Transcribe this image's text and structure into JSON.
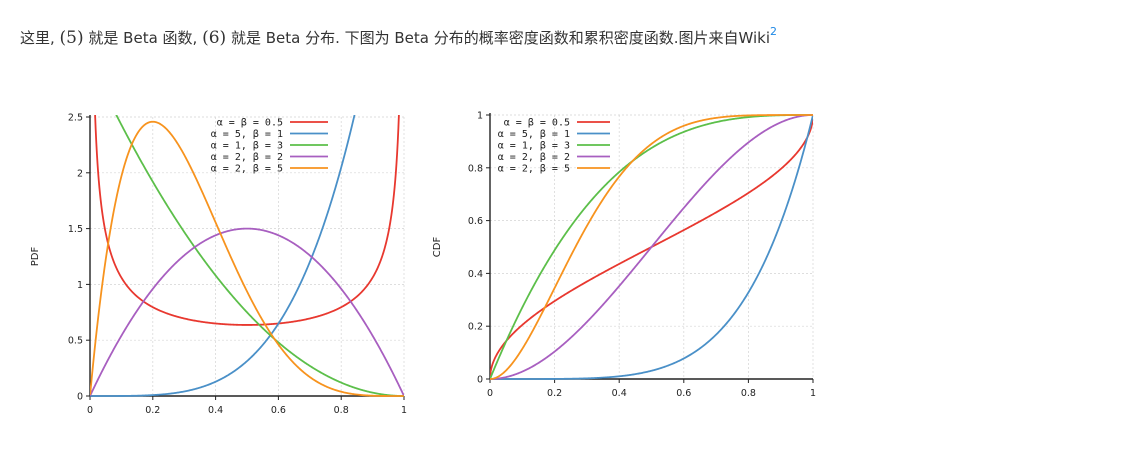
{
  "intro": {
    "p1": "这里, ",
    "eq1": "(5)",
    "p2": " 就是 Beta 函数, ",
    "eq2": "(6)",
    "p3": " 就是 Beta 分布. 下图为 Beta 分布的概率密度函数和累积密度函数.图片来自Wiki",
    "footnote": "2"
  },
  "colors": {
    "red": "#e8382f",
    "blue": "#4a90c8",
    "green": "#5cbf4a",
    "purple": "#a85fc0",
    "orange": "#f7931e"
  },
  "chart_data": [
    {
      "type": "line",
      "title": "",
      "xlabel": "",
      "ylabel": "PDF",
      "xlim": [
        0,
        1
      ],
      "ylim": [
        0,
        2.5
      ],
      "xticks": [
        "0",
        "0.2",
        "0.4",
        "0.6",
        "0.8",
        "1"
      ],
      "yticks": [
        "0",
        "0.5",
        "1",
        "1.5",
        "2",
        "2.5"
      ],
      "grid": true,
      "legend_position": "top-right",
      "series": [
        {
          "name": "α = β = 0.5",
          "alpha": 0.5,
          "beta": 0.5,
          "color": "#e8382f"
        },
        {
          "name": "α = 5, β = 1",
          "alpha": 5,
          "beta": 1,
          "color": "#4a90c8"
        },
        {
          "name": "α = 1, β = 3",
          "alpha": 1,
          "beta": 3,
          "color": "#5cbf4a"
        },
        {
          "name": "α = 2, β = 2",
          "alpha": 2,
          "beta": 2,
          "color": "#a85fc0"
        },
        {
          "name": "α = 2, β = 5",
          "alpha": 2,
          "beta": 5,
          "color": "#f7931e"
        }
      ]
    },
    {
      "type": "line",
      "title": "",
      "xlabel": "",
      "ylabel": "CDF",
      "xlim": [
        0,
        1
      ],
      "ylim": [
        0,
        1
      ],
      "xticks": [
        "0",
        "0.2",
        "0.4",
        "0.6",
        "0.8",
        "1"
      ],
      "yticks": [
        "0",
        "0.2",
        "0.4",
        "0.6",
        "0.8",
        "1"
      ],
      "grid": true,
      "legend_position": "top-left",
      "series": [
        {
          "name": "α = β = 0.5",
          "alpha": 0.5,
          "beta": 0.5,
          "color": "#e8382f"
        },
        {
          "name": "α = 5, β = 1",
          "alpha": 5,
          "beta": 1,
          "color": "#4a90c8"
        },
        {
          "name": "α = 1, β = 3",
          "alpha": 1,
          "beta": 3,
          "color": "#5cbf4a"
        },
        {
          "name": "α = 2, β = 2",
          "alpha": 2,
          "beta": 2,
          "color": "#a85fc0"
        },
        {
          "name": "α = 2, β = 5",
          "alpha": 2,
          "beta": 5,
          "color": "#f7931e"
        }
      ]
    }
  ]
}
